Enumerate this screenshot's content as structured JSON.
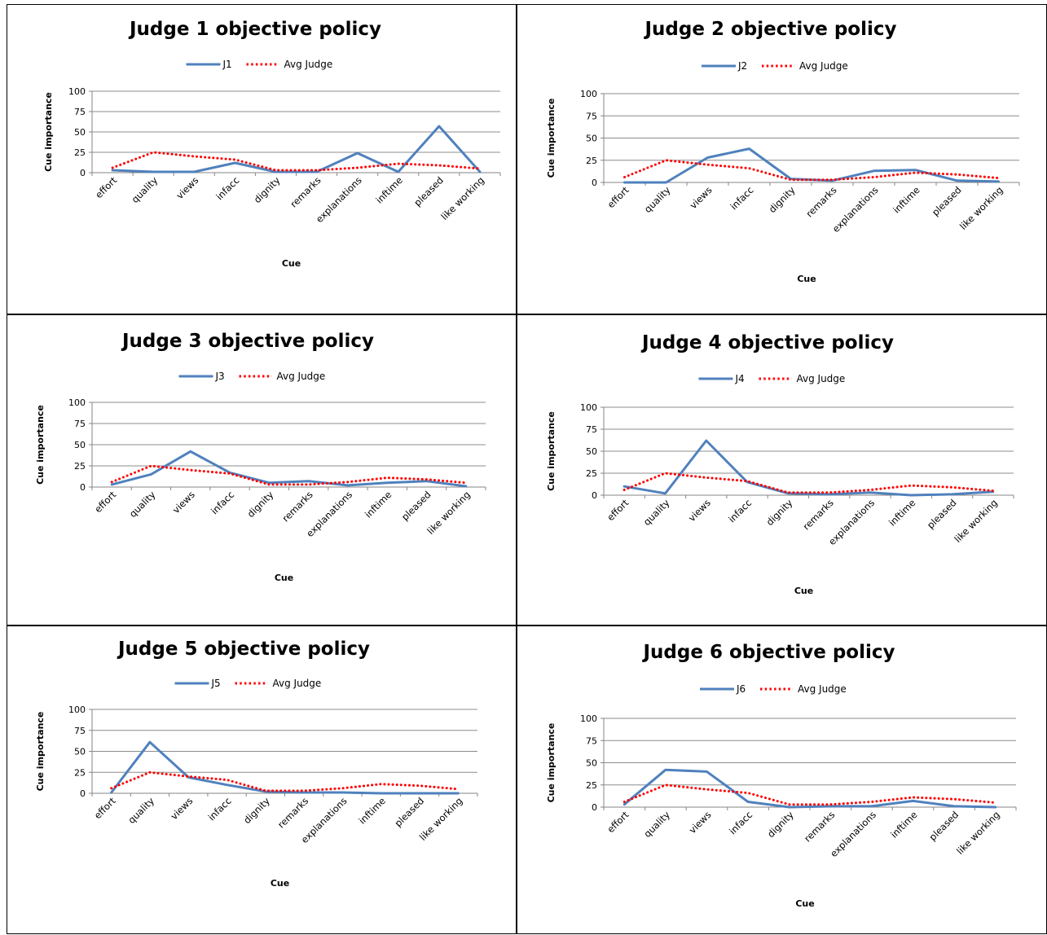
{
  "chart_data": [
    {
      "type": "line",
      "title": "Judge 1 objective policy",
      "xlabel": "Cue",
      "ylabel": "Cue importance",
      "ylim": [
        0,
        100
      ],
      "yticks": [
        "0",
        "25",
        "50",
        "75",
        "100"
      ],
      "grid": true,
      "legend": "top",
      "categories": [
        "effort",
        "quality",
        "views",
        "infacc",
        "dignity",
        "remarks",
        "explanations",
        "inftime",
        "pleased",
        "like working"
      ],
      "series": [
        {
          "name": "J1",
          "color": "#4F81BD",
          "style": "solid",
          "values": [
            3,
            1,
            1,
            12,
            1,
            1,
            24,
            1,
            57,
            1
          ]
        },
        {
          "name": "Avg Judge",
          "color": "#FF0000",
          "style": "dotted",
          "values": [
            6,
            25,
            20,
            16,
            3,
            3,
            6,
            11,
            9,
            5
          ]
        }
      ]
    },
    {
      "type": "line",
      "title": "Judge 2 objective policy",
      "xlabel": "Cue",
      "ylabel": "Cue importance",
      "ylim": [
        0,
        100
      ],
      "yticks": [
        "0",
        "25",
        "50",
        "75",
        "100"
      ],
      "grid": true,
      "legend": "top",
      "categories": [
        "effort",
        "quality",
        "views",
        "infacc",
        "dignity",
        "remarks",
        "explanations",
        "inftime",
        "pleased",
        "like working"
      ],
      "series": [
        {
          "name": "J2",
          "color": "#4F81BD",
          "style": "solid",
          "values": [
            0,
            0,
            28,
            38,
            4,
            2,
            13,
            14,
            2,
            1
          ]
        },
        {
          "name": "Avg Judge",
          "color": "#FF0000",
          "style": "dotted",
          "values": [
            6,
            25,
            20,
            16,
            3,
            3,
            6,
            11,
            9,
            5
          ]
        }
      ]
    },
    {
      "type": "line",
      "title": "Judge 3 objective policy",
      "xlabel": "Cue",
      "ylabel": "Cue importance",
      "ylim": [
        0,
        100
      ],
      "yticks": [
        "0",
        "25",
        "50",
        "75",
        "100"
      ],
      "grid": true,
      "legend": "top",
      "categories": [
        "effort",
        "quality",
        "views",
        "infacc",
        "dignity",
        "remarks",
        "explanations",
        "inftime",
        "pleased",
        "like working"
      ],
      "series": [
        {
          "name": "J3",
          "color": "#4F81BD",
          "style": "solid",
          "values": [
            3,
            15,
            42,
            17,
            5,
            7,
            2,
            5,
            7,
            1
          ]
        },
        {
          "name": "Avg Judge",
          "color": "#FF0000",
          "style": "dotted",
          "values": [
            6,
            25,
            20,
            16,
            3,
            3,
            6,
            11,
            9,
            5
          ]
        }
      ]
    },
    {
      "type": "line",
      "title": "Judge 4 objective policy",
      "xlabel": "Cue",
      "ylabel": "Cue importance",
      "ylim": [
        0,
        100
      ],
      "yticks": [
        "0",
        "25",
        "50",
        "75",
        "100"
      ],
      "grid": true,
      "legend": "top",
      "categories": [
        "effort",
        "quality",
        "views",
        "infacc",
        "dignity",
        "remarks",
        "explanations",
        "inftime",
        "pleased",
        "like working"
      ],
      "series": [
        {
          "name": "J4",
          "color": "#4F81BD",
          "style": "solid",
          "values": [
            10,
            2,
            62,
            15,
            2,
            1,
            3,
            0,
            1,
            4
          ]
        },
        {
          "name": "Avg Judge",
          "color": "#FF0000",
          "style": "dotted",
          "values": [
            6,
            25,
            20,
            16,
            3,
            3,
            6,
            11,
            9,
            5
          ]
        }
      ]
    },
    {
      "type": "line",
      "title": "Judge 5 objective policy",
      "xlabel": "Cue",
      "ylabel": "Cue importance",
      "ylim": [
        0,
        100
      ],
      "yticks": [
        "0",
        "25",
        "50",
        "75",
        "100"
      ],
      "grid": true,
      "legend": "top",
      "categories": [
        "effort",
        "quality",
        "views",
        "infacc",
        "dignity",
        "remarks",
        "explanations",
        "inftime",
        "pleased",
        "like working"
      ],
      "series": [
        {
          "name": "J5",
          "color": "#4F81BD",
          "style": "solid",
          "values": [
            1,
            61,
            19,
            10,
            2,
            1,
            1,
            0,
            0,
            0
          ]
        },
        {
          "name": "Avg Judge",
          "color": "#FF0000",
          "style": "dotted",
          "values": [
            6,
            25,
            20,
            16,
            3,
            3,
            6,
            11,
            9,
            5
          ]
        }
      ]
    },
    {
      "type": "line",
      "title": "Judge 6 objective policy",
      "xlabel": "Cue",
      "ylabel": "Cue importance",
      "ylim": [
        0,
        100
      ],
      "yticks": [
        "0",
        "25",
        "50",
        "75",
        "100"
      ],
      "grid": true,
      "legend": "top",
      "categories": [
        "effort",
        "quality",
        "views",
        "infacc",
        "dignity",
        "remarks",
        "explanations",
        "inftime",
        "pleased",
        "like working"
      ],
      "series": [
        {
          "name": "J6",
          "color": "#4F81BD",
          "style": "solid",
          "values": [
            3,
            42,
            40,
            6,
            0,
            1,
            1,
            7,
            1,
            0
          ]
        },
        {
          "name": "Avg Judge",
          "color": "#FF0000",
          "style": "dotted",
          "values": [
            6,
            25,
            20,
            16,
            3,
            3,
            6,
            11,
            9,
            5
          ]
        }
      ]
    }
  ]
}
